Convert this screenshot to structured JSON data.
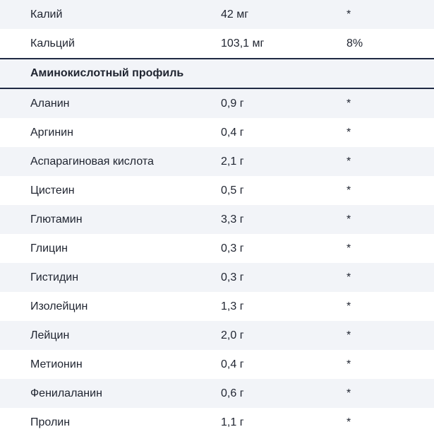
{
  "rows_top": [
    {
      "name": "Калий",
      "amount": "42 мг",
      "dv": "*"
    },
    {
      "name": "Кальций",
      "amount": "103,1 мг",
      "dv": "8%"
    }
  ],
  "section": {
    "title": "Аминокислотный профиль"
  },
  "rows_amino": [
    {
      "name": "Аланин",
      "amount": "0,9 г",
      "dv": "*"
    },
    {
      "name": "Аргинин",
      "amount": "0,4 г",
      "dv": "*"
    },
    {
      "name": "Аспарагиновая кислота",
      "amount": "2,1 г",
      "dv": "*"
    },
    {
      "name": "Цистеин",
      "amount": "0,5 г",
      "dv": "*"
    },
    {
      "name": "Глютамин",
      "amount": "3,3 г",
      "dv": "*"
    },
    {
      "name": "Глицин",
      "amount": "0,3 г",
      "dv": "*"
    },
    {
      "name": "Гистидин",
      "amount": "0,3 г",
      "dv": "*"
    },
    {
      "name": "Изолейцин",
      "amount": "1,3 г",
      "dv": "*"
    },
    {
      "name": "Лейцин",
      "amount": "2,0 г",
      "dv": "*"
    },
    {
      "name": "Метионин",
      "amount": "0,4 г",
      "dv": "*"
    },
    {
      "name": "Фенилаланин",
      "amount": "0,6 г",
      "dv": "*"
    },
    {
      "name": "Пролин",
      "amount": "1,1 г",
      "dv": "*"
    }
  ]
}
